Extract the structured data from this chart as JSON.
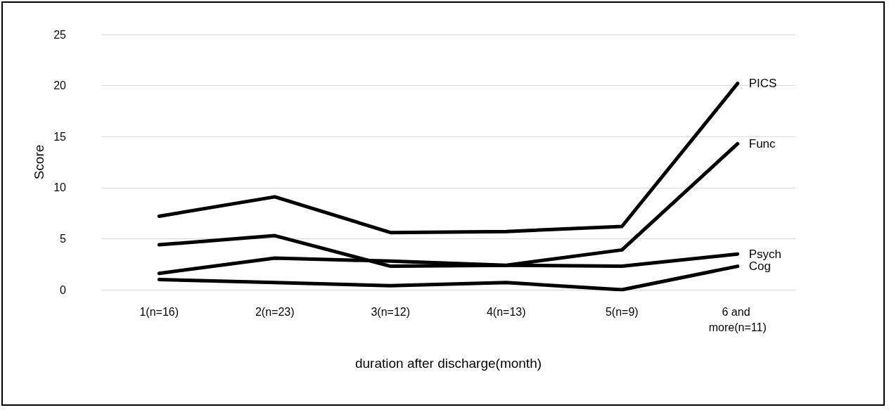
{
  "chart_data": {
    "type": "line",
    "xlabel": "duration after discharge(month)",
    "ylabel": "Score",
    "categories": [
      "1(n=16)",
      "2(n=23)",
      "3(n=12)",
      "4(n=13)",
      "5(n=9)",
      "6 and more(n=11)"
    ],
    "series": [
      {
        "name": "PICS",
        "color": "#000000",
        "values": [
          7.2,
          9.1,
          5.6,
          5.7,
          6.2,
          20.2
        ]
      },
      {
        "name": "Func",
        "color": "#000000",
        "values": [
          4.4,
          5.3,
          2.3,
          2.4,
          3.9,
          14.3
        ]
      },
      {
        "name": "Psych",
        "color": "#000000",
        "values": [
          1.6,
          3.1,
          2.8,
          2.4,
          2.3,
          3.5
        ]
      },
      {
        "name": "Cog",
        "color": "#000000",
        "values": [
          1.0,
          0.7,
          0.4,
          0.7,
          0.0,
          2.3
        ]
      }
    ],
    "ylim": [
      0,
      25
    ],
    "yticks": [
      0,
      5,
      10,
      15,
      20,
      25
    ],
    "grid": "y",
    "legend": false,
    "marker": "none",
    "line_style": "solid"
  }
}
